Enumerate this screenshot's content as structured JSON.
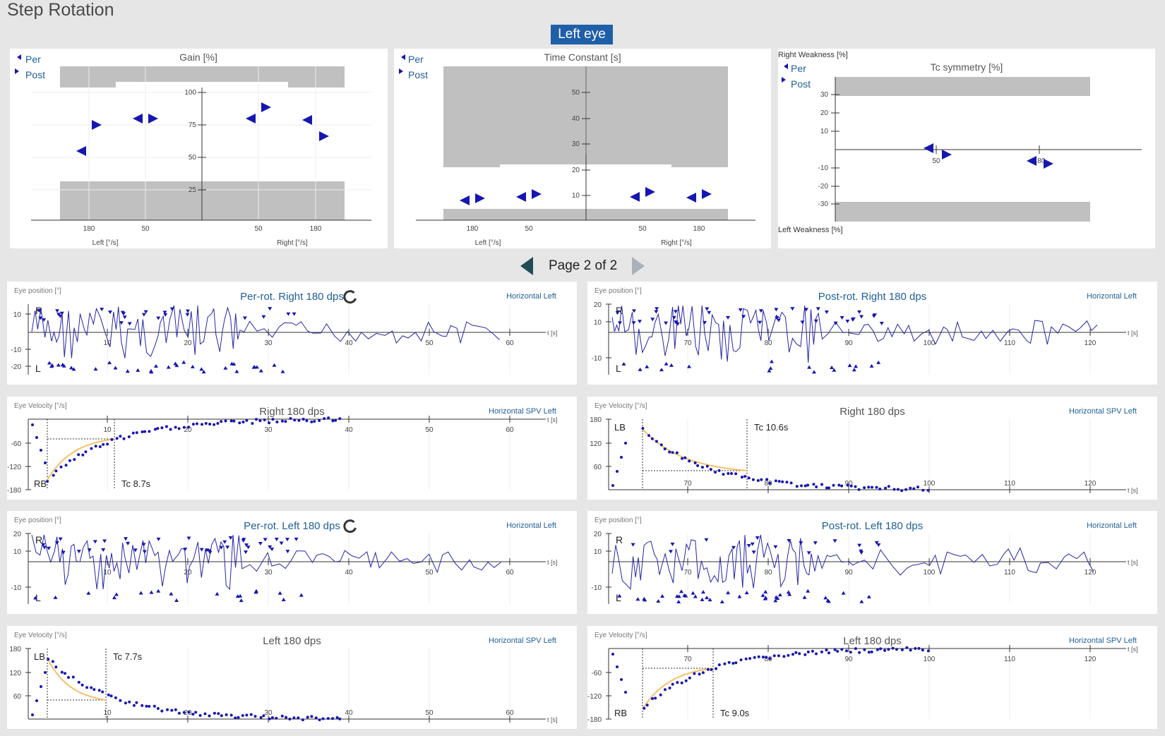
{
  "app": {
    "title": "Step Rotation"
  },
  "eye_selector": {
    "label": "Left eye"
  },
  "legend": {
    "per": "Per",
    "post": "Post"
  },
  "summary": {
    "gain": {
      "title": "Gain [%]",
      "ticks": [
        "100",
        "75",
        "50",
        "25"
      ],
      "xticks": [
        "180",
        "50",
        "50",
        "180"
      ],
      "xlabel_left": "Left [°/s]",
      "xlabel_right": "Right [°/s]"
    },
    "tc": {
      "title": "Time Constant [s]",
      "ticks": [
        "50",
        "40",
        "30",
        "20",
        "10"
      ],
      "xticks": [
        "180",
        "50",
        "50",
        "180"
      ],
      "xlabel_left": "Left [°/s]",
      "xlabel_right": "Right [°/s]"
    },
    "sym": {
      "title": "Tc symmetry [%]",
      "ticks": [
        "30",
        "20",
        "10",
        "-10",
        "-20",
        "-30"
      ],
      "xticks": [
        "50",
        "180"
      ],
      "top_label": "Right Weakness [%]",
      "bottom_label": "Left Weakness [%]"
    }
  },
  "pager": {
    "label": "Page 2 of 2"
  },
  "traces": [
    {
      "ylabel": "Eye position [°]",
      "title": "Per-rot. Right 180 dps",
      "channel": "Horizontal Left",
      "yticks": [
        "10",
        "-10",
        "-20"
      ],
      "xticks": [
        "10",
        "20",
        "30",
        "40",
        "50",
        "60"
      ],
      "xunit": "t [s]",
      "top_tag": "R",
      "bottom_tag": "L",
      "rotation_icon": true
    },
    {
      "ylabel": "Eye position [°]",
      "title": "Post-rot. Right 180 dps",
      "channel": "Horizontal Left",
      "yticks": [
        "20",
        "10",
        "-10"
      ],
      "xticks": [
        "70",
        "80",
        "90",
        "100",
        "110",
        "120"
      ],
      "xunit": "t [s]",
      "top_tag": "R",
      "bottom_tag": "L"
    },
    {
      "ylabel": "Eye Velocity [°/s]",
      "title": "Right 180 dps",
      "channel": "Horizontal SPV Left",
      "yticks": [
        "-60",
        "-120",
        "-180"
      ],
      "xticks": [
        "10",
        "20",
        "30",
        "40",
        "50",
        "60"
      ],
      "xunit": "t [s]",
      "corner_tag": "RB",
      "tc_label": "Tc 8.7s"
    },
    {
      "ylabel": "Eye Velocity [°/s]",
      "title": "Right 180 dps",
      "channel": "Horizontal SPV Left",
      "yticks": [
        "180",
        "120",
        "60"
      ],
      "xticks": [
        "70",
        "80",
        "90",
        "100",
        "110",
        "120"
      ],
      "xunit": "t [s]",
      "corner_tag": "LB",
      "tc_label": "Tc 10.6s"
    },
    {
      "ylabel": "Eye position [°]",
      "title": "Per-rot. Left 180 dps",
      "channel": "Horizontal Left",
      "yticks": [
        "20",
        "10",
        "-10"
      ],
      "xticks": [
        "10",
        "20",
        "30",
        "40",
        "50",
        "60"
      ],
      "xunit": "t [s]",
      "top_tag": "R",
      "bottom_tag": "L",
      "rotation_icon": true
    },
    {
      "ylabel": "Eye position [°]",
      "title": "Post-rot. Left 180 dps",
      "channel": "Horizontal Left",
      "yticks": [
        "20",
        "10",
        "-10"
      ],
      "xticks": [
        "70",
        "80",
        "90",
        "100",
        "110",
        "120"
      ],
      "xunit": "t [s]",
      "top_tag": "R",
      "bottom_tag": "L"
    },
    {
      "ylabel": "Eye Velocity [°/s]",
      "title": "Left 180 dps",
      "channel": "Horizontal SPV Left",
      "yticks": [
        "180",
        "120",
        "60"
      ],
      "xticks": [
        "10",
        "20",
        "30",
        "40",
        "50",
        "60"
      ],
      "xunit": "t [s]",
      "corner_tag": "LB",
      "tc_label": "Tc 7.7s"
    },
    {
      "ylabel": "Eye Velocity [°/s]",
      "title": "Left 180 dps",
      "channel": "Horizontal SPV Left",
      "yticks": [
        "-60",
        "-120",
        "-180"
      ],
      "xticks": [
        "70",
        "80",
        "90",
        "100",
        "110",
        "120"
      ],
      "xunit": "t [s]",
      "corner_tag": "RB",
      "tc_label": "Tc 9.0s"
    }
  ],
  "colors": {
    "marker": "#1616b0",
    "band": "#c0c0c0",
    "fit": "#f5c06a",
    "title_blue": "#1f5f96",
    "badge": "#1f5fa8"
  }
}
